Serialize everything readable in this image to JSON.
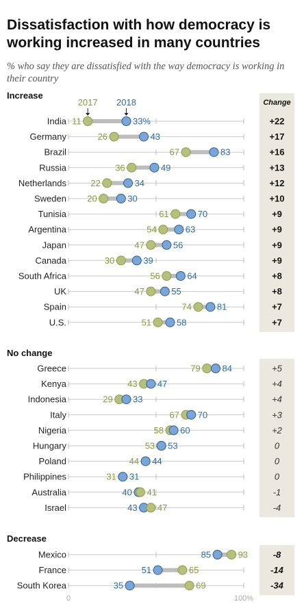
{
  "title": "Dissatisfaction with how democracy is working increased in many countries",
  "subtitle": "% who say they are dissatisfied with the way democracy is working in their country",
  "legend": {
    "y2017": "2017",
    "y2018": "2018"
  },
  "change_header": "Change",
  "colors": {
    "c2017": "#b6bf7c",
    "c2018": "#7aa5d6",
    "text2017": "#8a9a3c",
    "text2018": "#2d6ca0",
    "changeBg": "#ebe9df"
  },
  "chart_data": {
    "type": "dot-plot",
    "xlim": [
      0,
      100
    ],
    "x_tick_labels": [
      "0",
      "100%"
    ],
    "sections": [
      {
        "name": "Increase",
        "rows": [
          {
            "country": "India",
            "y2017": 11,
            "y2018": 33,
            "label2018": "33%",
            "change": "+22"
          },
          {
            "country": "Germany",
            "y2017": 26,
            "y2018": 43,
            "change": "+17"
          },
          {
            "country": "Brazil",
            "y2017": 67,
            "y2018": 83,
            "change": "+16"
          },
          {
            "country": "Russia",
            "y2017": 36,
            "y2018": 49,
            "change": "+13"
          },
          {
            "country": "Netherlands",
            "y2017": 22,
            "y2018": 34,
            "change": "+12"
          },
          {
            "country": "Sweden",
            "y2017": 20,
            "y2018": 30,
            "change": "+10"
          },
          {
            "country": "Tunisia",
            "y2017": 61,
            "y2018": 70,
            "change": "+9"
          },
          {
            "country": "Argentina",
            "y2017": 54,
            "y2018": 63,
            "change": "+9"
          },
          {
            "country": "Japan",
            "y2017": 47,
            "y2018": 56,
            "change": "+9"
          },
          {
            "country": "Canada",
            "y2017": 30,
            "y2018": 39,
            "change": "+9"
          },
          {
            "country": "South Africa",
            "y2017": 56,
            "y2018": 64,
            "change": "+8"
          },
          {
            "country": "UK",
            "y2017": 47,
            "y2018": 55,
            "change": "+8"
          },
          {
            "country": "Spain",
            "y2017": 74,
            "y2018": 81,
            "change": "+7"
          },
          {
            "country": "U.S.",
            "y2017": 51,
            "y2018": 58,
            "change": "+7"
          }
        ]
      },
      {
        "name": "No change",
        "rows": [
          {
            "country": "Greece",
            "y2017": 79,
            "y2018": 84,
            "change": "+5"
          },
          {
            "country": "Kenya",
            "y2017": 43,
            "y2018": 47,
            "change": "+4"
          },
          {
            "country": "Indonesia",
            "y2017": 29,
            "y2018": 33,
            "change": "+4"
          },
          {
            "country": "Italy",
            "y2017": 67,
            "y2018": 70,
            "change": "+3"
          },
          {
            "country": "Nigeria",
            "y2017": 58,
            "y2018": 60,
            "change": "+2"
          },
          {
            "country": "Hungary",
            "y2017": 53,
            "y2018": 53,
            "change": "0"
          },
          {
            "country": "Poland",
            "y2017": 44,
            "y2018": 44,
            "change": "0"
          },
          {
            "country": "Philippines",
            "y2017": 31,
            "y2018": 31,
            "change": "0"
          },
          {
            "country": "Australia",
            "y2017": 41,
            "y2018": 40,
            "change": "-1"
          },
          {
            "country": "Israel",
            "y2017": 47,
            "y2018": 43,
            "change": "-4"
          }
        ]
      },
      {
        "name": "Decrease",
        "rows": [
          {
            "country": "Mexico",
            "y2017": 93,
            "y2018": 85,
            "change": "-8"
          },
          {
            "country": "France",
            "y2017": 65,
            "y2018": 51,
            "change": "-14"
          },
          {
            "country": "South Korea",
            "y2017": 69,
            "y2018": 35,
            "change": "-34"
          }
        ]
      }
    ]
  }
}
